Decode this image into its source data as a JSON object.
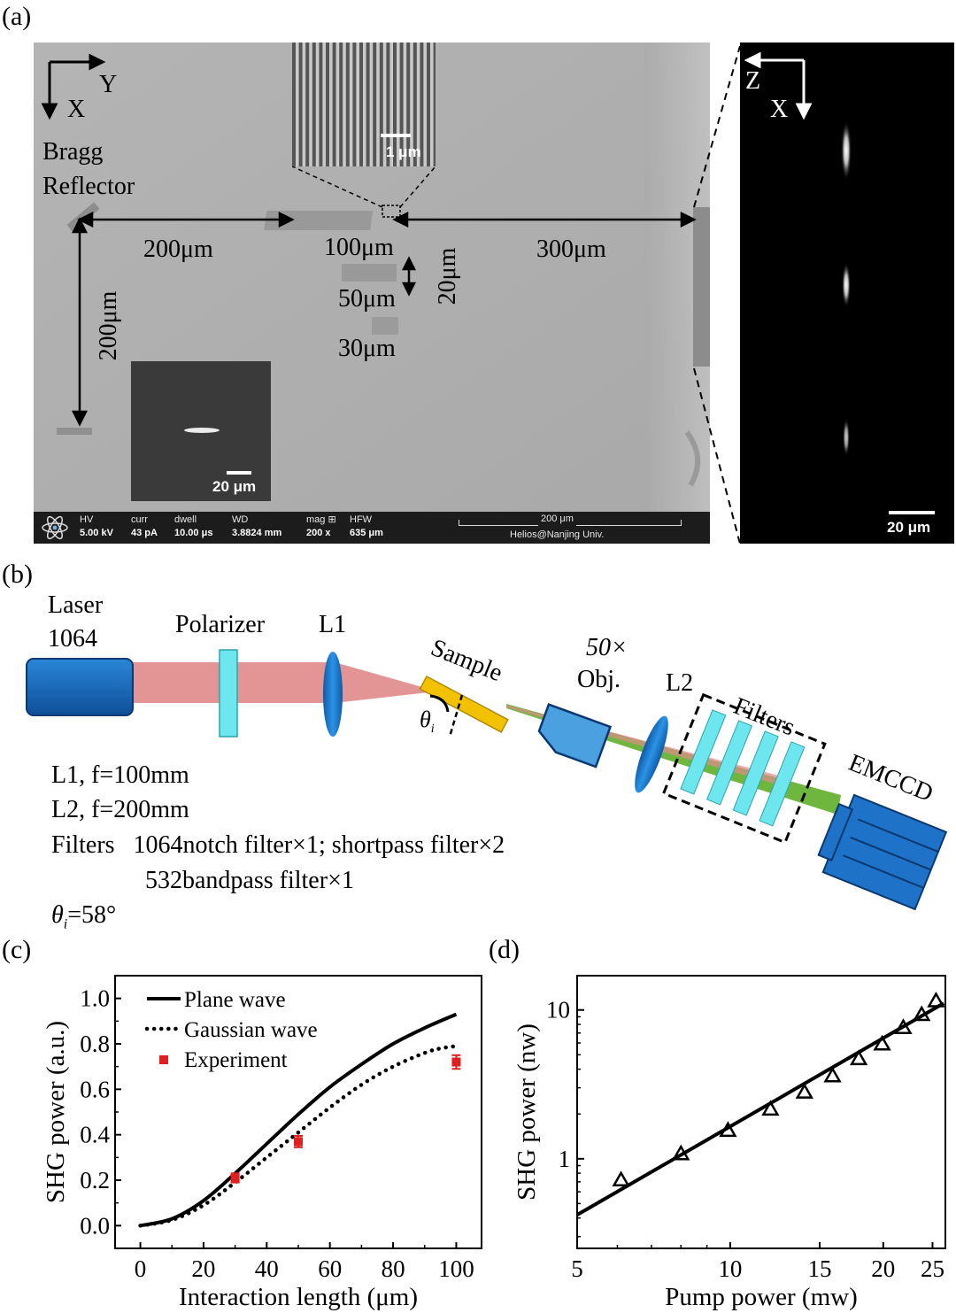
{
  "panel_labels": {
    "a": "(a)",
    "b": "(b)",
    "c": "(c)",
    "d": "(d)"
  },
  "panel_a": {
    "axes_left": {
      "x": "X",
      "y": "Y"
    },
    "axes_right": {
      "z": "Z",
      "x": "X"
    },
    "bragg": {
      "line1": "Bragg",
      "line2": "Reflector"
    },
    "dims": {
      "d200_h": "200μm",
      "d200_v": "200μm",
      "d100": "100μm",
      "d50": "50μm",
      "d30": "30μm",
      "d20": "20μm",
      "d300": "300μm"
    },
    "inset_top_scale": "1 μm",
    "inset_bottom_scale": "20 μm",
    "right_scale": "20 μm",
    "sem_bar": {
      "hv": {
        "k": "HV",
        "v": "5.00 kV"
      },
      "curr": {
        "k": "curr",
        "v": "43 pA"
      },
      "dwell": {
        "k": "dwell",
        "v": "10.00 μs"
      },
      "wd": {
        "k": "WD",
        "v": "3.8824 mm"
      },
      "mag": {
        "k": "mag ⊞",
        "v": "200 x"
      },
      "hfw": {
        "k": "HFW",
        "v": "635 μm"
      },
      "scale": "200 μm",
      "institution": "Helios@Nanjing Univ."
    }
  },
  "panel_b": {
    "laser": {
      "line1": "Laser",
      "line2": "1064"
    },
    "polarizer": "Polarizer",
    "l1": "L1",
    "sample": "Sample",
    "objective": {
      "line1": "50×",
      "line2": "Obj."
    },
    "l2": "L2",
    "filters": "Filters",
    "emccd": "EMCCD",
    "theta": "θ",
    "theta_sub": "i",
    "specs": {
      "l1": "L1, f=100mm",
      "l2": "L2, f=200mm",
      "filters_1": "Filters   1064notch filter×1; shortpass filter×2",
      "filters_2": "532bandpass filter×1",
      "theta_i": "=58°"
    },
    "colors": {
      "ir_beam": "#e08a8a",
      "green_beam": "#5fae2a",
      "component_blue": "#1e73c8",
      "filter_cyan": "#6ee6ee",
      "sample_gold": "#f2c200"
    }
  },
  "chart_data": [
    {
      "type": "line",
      "panel": "(c)",
      "xlabel": "Interaction length (μm)",
      "ylabel": "SHG power (a.u.)",
      "xlim": [
        -8,
        108
      ],
      "ylim": [
        -0.1,
        1.1
      ],
      "xticks": [
        0,
        20,
        40,
        60,
        80,
        100
      ],
      "xtick_labels": [
        "0",
        "20",
        "40",
        "60",
        "80",
        "100"
      ],
      "yticks": [
        0.0,
        0.2,
        0.4,
        0.6,
        0.8,
        1.0
      ],
      "ytick_labels": [
        "0.0",
        "0.2",
        "0.4",
        "0.6",
        "0.8",
        "1.0"
      ],
      "legend_position": "top-left",
      "series": [
        {
          "name": "Plane wave",
          "style": "solid",
          "x": [
            0,
            10,
            20,
            30,
            40,
            50,
            60,
            70,
            80,
            90,
            100
          ],
          "y": [
            0.0,
            0.03,
            0.11,
            0.23,
            0.36,
            0.49,
            0.61,
            0.71,
            0.8,
            0.87,
            0.93
          ]
        },
        {
          "name": "Gaussian wave",
          "style": "dotted",
          "x": [
            0,
            10,
            20,
            30,
            40,
            50,
            60,
            70,
            80,
            90,
            95,
            100
          ],
          "y": [
            0.0,
            0.025,
            0.09,
            0.19,
            0.3,
            0.41,
            0.52,
            0.62,
            0.7,
            0.76,
            0.78,
            0.79
          ]
        },
        {
          "name": "Experiment",
          "style": "marker",
          "color": "#e02020",
          "x": [
            30,
            50,
            100
          ],
          "y": [
            0.21,
            0.37,
            0.72
          ],
          "err": [
            0.02,
            0.025,
            0.03
          ]
        }
      ]
    },
    {
      "type": "scatter",
      "panel": "(d)",
      "xlabel": "Pump power (mw)",
      "ylabel": "SHG power (nw)",
      "xscale": "log",
      "yscale": "log",
      "xlim": [
        5,
        26.5
      ],
      "ylim": [
        0.25,
        17
      ],
      "xticks": [
        5,
        10,
        15,
        20,
        25
      ],
      "xtick_labels": [
        "5",
        "10",
        "15",
        "20",
        "25"
      ],
      "yticks": [
        1,
        10
      ],
      "ytick_labels": [
        "1",
        "10"
      ],
      "series": [
        {
          "name": "",
          "style": "marker-triangle",
          "x": [
            6.1,
            8,
            9.9,
            12,
            14,
            15.9,
            17.9,
            19.9,
            21.9,
            23.8,
            25.4
          ],
          "y": [
            0.72,
            1.08,
            1.55,
            2.15,
            2.8,
            3.6,
            4.7,
            5.9,
            7.6,
            9.3,
            11.5
          ]
        },
        {
          "name": "",
          "style": "solid",
          "x": [
            5,
            26.3
          ],
          "y": [
            0.42,
            11.1
          ]
        }
      ]
    }
  ]
}
